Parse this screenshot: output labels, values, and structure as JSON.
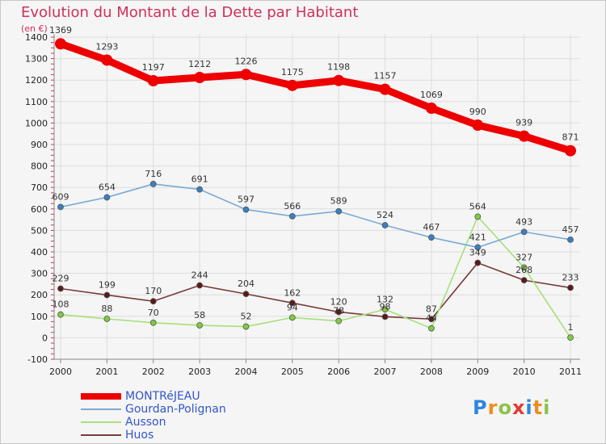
{
  "title": "Evolution du Montant de la Dette par Habitant",
  "unit": "(en €)",
  "brand": "Proxiti",
  "brand_letters": [
    {
      "ch": "P",
      "color": "#2e86de"
    },
    {
      "ch": "r",
      "color": "#f08c1f"
    },
    {
      "ch": "o",
      "color": "#8bc34a"
    },
    {
      "ch": "x",
      "color": "#e53935"
    },
    {
      "ch": "i",
      "color": "#2e86de"
    },
    {
      "ch": "t",
      "color": "#f08c1f"
    },
    {
      "ch": "i",
      "color": "#8bc34a"
    }
  ],
  "chart_data": {
    "type": "line",
    "x": [
      "2000",
      "2001",
      "2002",
      "2003",
      "2004",
      "2005",
      "2006",
      "2007",
      "2008",
      "2009",
      "2010",
      "2011"
    ],
    "ylim": [
      -100,
      1400
    ],
    "yticks": [
      -100,
      0,
      100,
      200,
      300,
      400,
      500,
      600,
      700,
      800,
      900,
      1000,
      1100,
      1200,
      1300,
      1400
    ],
    "grid": true,
    "legend_position": "bottom-left",
    "series": [
      {
        "name": "MONTRéJEAU",
        "color": "#ee0000",
        "marker": "#ee0000",
        "width": "thick",
        "values": [
          1369,
          1293,
          1197,
          1212,
          1226,
          1175,
          1198,
          1157,
          1069,
          990,
          939,
          871
        ],
        "labels": [
          "1369",
          "1293",
          "1197",
          "1212",
          "1226",
          "1175",
          "1198",
          "1157",
          "1069",
          "990",
          "939",
          "871"
        ]
      },
      {
        "name": "Gourdan-Polignan",
        "color": "#7aaad6",
        "marker": "#3a7fc4",
        "width": "thin",
        "values": [
          609,
          654,
          716,
          691,
          597,
          566,
          589,
          524,
          467,
          421,
          493,
          457
        ],
        "labels": [
          "609",
          "654",
          "716",
          "691",
          "597",
          "566",
          "589",
          "524",
          "467",
          "421",
          "493",
          "457"
        ]
      },
      {
        "name": "Ausson",
        "color": "#a6e07a",
        "marker": "#7fcc3f",
        "width": "thin",
        "values": [
          108,
          88,
          70,
          58,
          52,
          94,
          78,
          132,
          44,
          564,
          327,
          1
        ],
        "labels": [
          "108",
          "88",
          "70",
          "58",
          "52",
          "94",
          "78",
          "132",
          "44",
          "564",
          "327",
          "1"
        ]
      },
      {
        "name": "Huos",
        "color": "#7a3a3a",
        "marker": "#5a1a1a",
        "width": "thin",
        "values": [
          229,
          199,
          170,
          244,
          204,
          162,
          120,
          98,
          87,
          349,
          268,
          233
        ],
        "labels": [
          "229",
          "199",
          "170",
          "244",
          "204",
          "162",
          "120",
          "98",
          "87",
          "349",
          "268",
          "233"
        ]
      }
    ]
  }
}
